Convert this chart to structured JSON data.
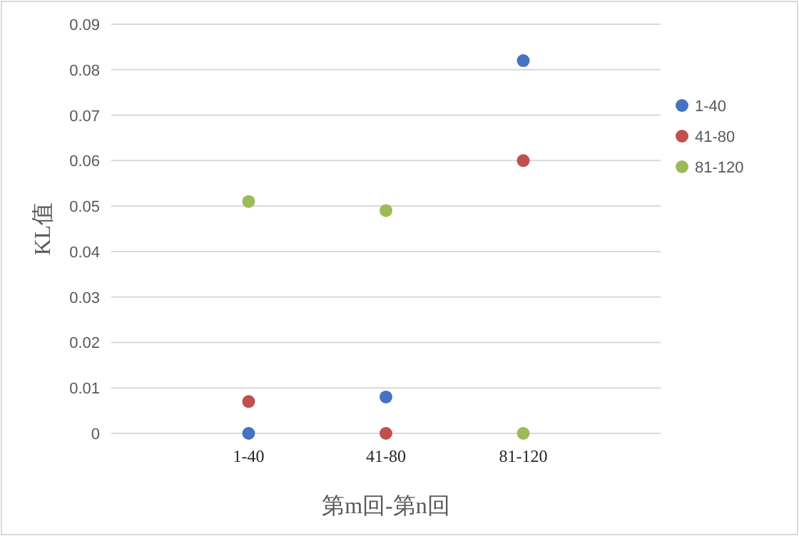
{
  "chart_data": {
    "type": "scatter",
    "xlabel": "第m回-第n回",
    "ylabel": "KL值",
    "categories": [
      "1-40",
      "41-80",
      "81-120"
    ],
    "series": [
      {
        "name": "1-40",
        "color": "#4472c4",
        "values": [
          0,
          0.008,
          0.082
        ]
      },
      {
        "name": "41-80",
        "color": "#c0504d",
        "values": [
          0.007,
          0,
          0.06
        ]
      },
      {
        "name": "81-120",
        "color": "#9bbb59",
        "values": [
          0.051,
          0.049,
          0
        ]
      }
    ],
    "ylim": [
      0,
      0.09
    ],
    "yticks": [
      0,
      0.01,
      0.02,
      0.03,
      0.04,
      0.05,
      0.06,
      0.07,
      0.08,
      0.09
    ],
    "grid": "y",
    "legend": "right",
    "marker": "circle"
  }
}
